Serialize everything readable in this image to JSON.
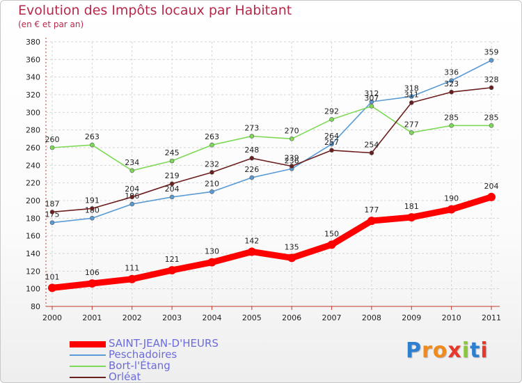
{
  "header": {
    "title": "Evolution des Impôts locaux par Habitant",
    "subtitle": "(en € et par an)"
  },
  "chart_data": {
    "type": "line",
    "title": "Evolution des Impôts locaux par Habitant",
    "subtitle": "(en € et par an)",
    "xlabel": "",
    "ylabel": "",
    "categories": [
      "2000",
      "2001",
      "2002",
      "2003",
      "2004",
      "2005",
      "2006",
      "2007",
      "2008",
      "2009",
      "2010",
      "2011"
    ],
    "ylim": [
      80,
      380
    ],
    "yticks": [
      80,
      100,
      120,
      140,
      160,
      180,
      200,
      220,
      240,
      260,
      280,
      300,
      320,
      340,
      360,
      380
    ],
    "grid": true,
    "legend_position": "bottom-left",
    "series": [
      {
        "name": "Peschadoires",
        "color": "#5b9bd5",
        "values": [
          175,
          180,
          196,
          204,
          210,
          226,
          236,
          264,
          312,
          318,
          336,
          359
        ],
        "labels": [
          "175",
          "180",
          "196",
          "204",
          "210",
          "226",
          "236",
          "264",
          "312",
          "318",
          "336",
          "359"
        ]
      },
      {
        "name": "Bort-l'Étang",
        "color": "#7ed957",
        "values": [
          260,
          263,
          234,
          245,
          263,
          273,
          270,
          292,
          307,
          277,
          285,
          285
        ],
        "labels": [
          "260",
          "263",
          "234",
          "245",
          "263",
          "273",
          "270",
          "292",
          "307",
          "277",
          "285",
          "285"
        ]
      },
      {
        "name": "Orléat",
        "color": "#6b1e1e",
        "values": [
          187,
          191,
          204,
          219,
          232,
          248,
          239,
          257,
          254,
          311,
          323,
          328
        ],
        "labels": [
          "187",
          "191",
          "204",
          "219",
          "232",
          "248",
          "239",
          "257",
          "254",
          "311",
          "323",
          "328"
        ]
      },
      {
        "name": "SAINT-JEAN-D'HEURS",
        "color": "#ff0000",
        "values": [
          101,
          106,
          111,
          121,
          130,
          142,
          135,
          150,
          177,
          181,
          190,
          204
        ],
        "labels": [
          "101",
          "106",
          "111",
          "121",
          "130",
          "142",
          "135",
          "150",
          "177",
          "181",
          "190",
          "204"
        ]
      }
    ]
  },
  "legend": {
    "items": [
      {
        "label": "SAINT-JEAN-D'HEURS",
        "color": "#ff0000"
      },
      {
        "label": "Peschadoires",
        "color": "#5b9bd5"
      },
      {
        "label": "Bort-l'Étang",
        "color": "#7ed957"
      },
      {
        "label": "Orléat",
        "color": "#6b1e1e"
      }
    ]
  },
  "logo": {
    "letters": [
      "P",
      "r",
      "o",
      "x",
      "i",
      "t",
      "i"
    ],
    "colors": [
      "#2f7fd1",
      "#f08a1c",
      "#f08a1c",
      "#e6392b",
      "#8cc63f",
      "#2f7fd1",
      "#e6392b"
    ]
  }
}
